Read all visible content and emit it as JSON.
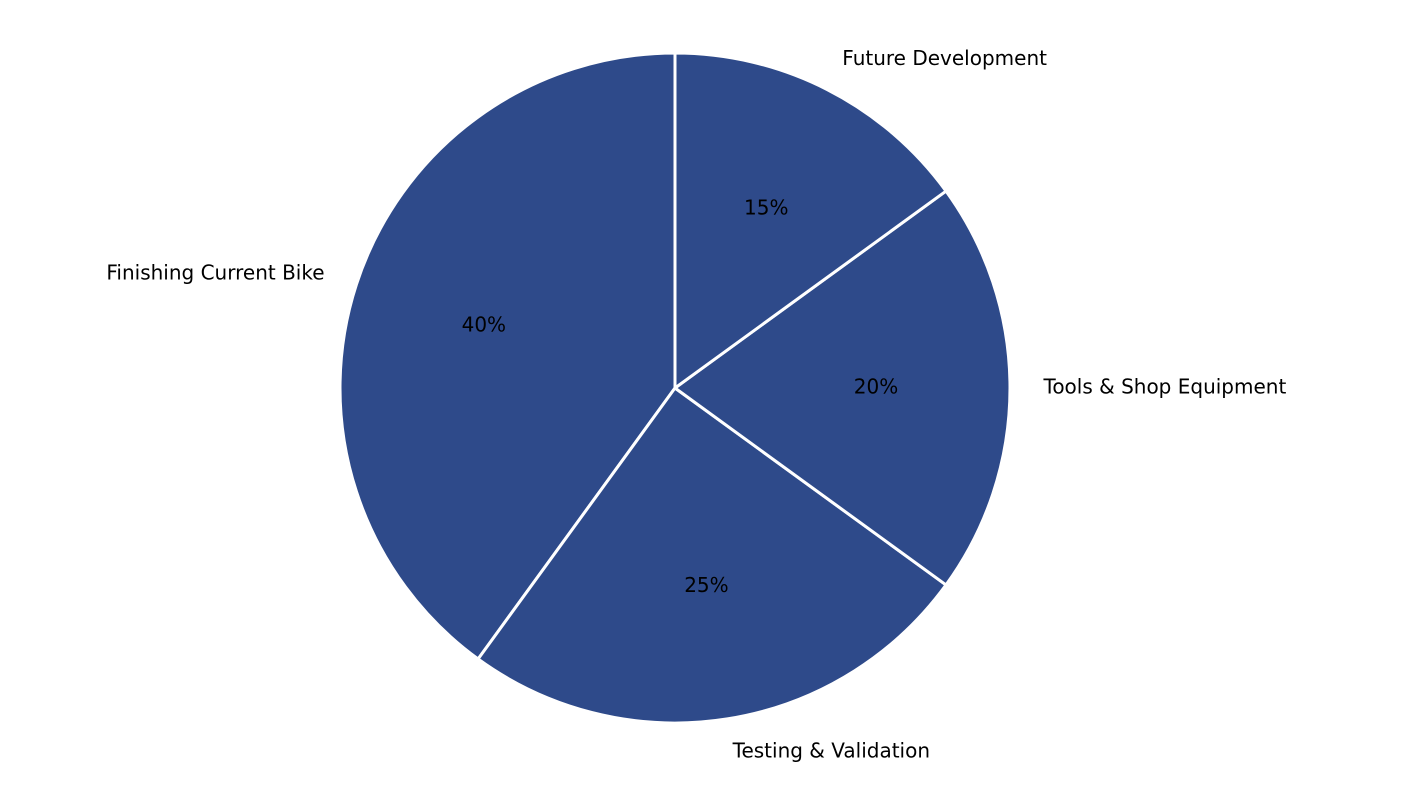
{
  "chart_data": {
    "type": "pie",
    "categories": [
      "Finishing Current Bike",
      "Testing & Validation",
      "Tools & Shop Equipment",
      "Future Development"
    ],
    "values": [
      40,
      25,
      20,
      15
    ],
    "value_labels": [
      "40%",
      "25%",
      "20%",
      "15%"
    ],
    "color": "#2e4a8a",
    "start_angle": 90,
    "counterclockwise": true
  }
}
